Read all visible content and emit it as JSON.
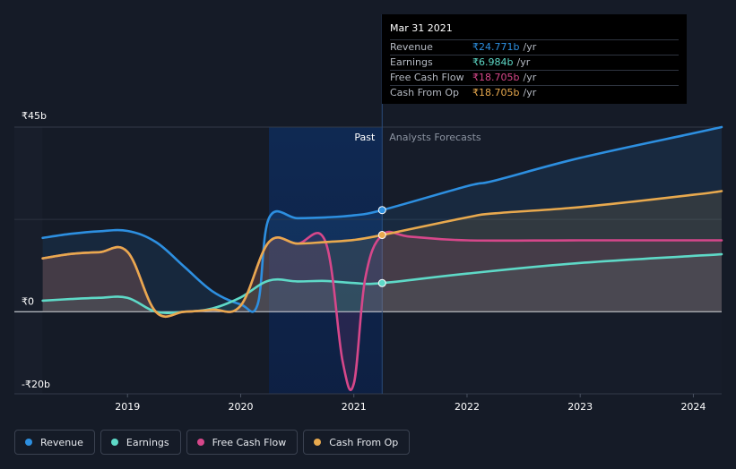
{
  "chart_data": {
    "type": "line",
    "y_axis": {
      "currency": "₹",
      "ylim": [
        -20,
        45
      ],
      "ticks": [
        {
          "value": 45,
          "label": "₹45b"
        },
        {
          "value": 0,
          "label": "₹0"
        },
        {
          "value": -20,
          "label": "-₹20b"
        }
      ]
    },
    "x_axis": {
      "xlim": [
        2018.0,
        2024.25
      ],
      "ticks": [
        {
          "value": 2019,
          "label": "2019"
        },
        {
          "value": 2020,
          "label": "2020"
        },
        {
          "value": 2021,
          "label": "2021"
        },
        {
          "value": 2022,
          "label": "2022"
        },
        {
          "value": 2023,
          "label": "2023"
        },
        {
          "value": 2024,
          "label": "2024"
        }
      ]
    },
    "zones": {
      "past_label": "Past",
      "forecast_label": "Analysts Forecasts",
      "highlight_start": 2020.25,
      "divider": 2021.25
    },
    "series": [
      {
        "key": "revenue",
        "name": "Revenue",
        "color": "#2d8fe0",
        "x": [
          2018.25,
          2018.5,
          2018.75,
          2019.0,
          2019.25,
          2019.5,
          2019.75,
          2020.0,
          2020.15,
          2020.25,
          2020.5,
          2020.75,
          2021.0,
          2021.25,
          2022.0,
          2022.25,
          2023.0,
          2024.0,
          2024.25
        ],
        "y": [
          18.0,
          19.0,
          19.6,
          19.7,
          17.0,
          11.0,
          5.0,
          1.8,
          1.8,
          22.8,
          22.8,
          23.0,
          23.5,
          24.771,
          30.6,
          32.0,
          37.5,
          43.5,
          45.0
        ]
      },
      {
        "key": "earnings",
        "name": "Earnings",
        "color": "#5ed9c7",
        "x": [
          2018.25,
          2018.5,
          2018.75,
          2019.0,
          2019.25,
          2019.5,
          2019.75,
          2020.0,
          2020.25,
          2020.5,
          2020.75,
          2021.0,
          2021.25,
          2022.0,
          2023.0,
          2024.25
        ],
        "y": [
          2.7,
          3.1,
          3.4,
          3.4,
          0.0,
          0.0,
          0.8,
          3.5,
          7.6,
          7.4,
          7.5,
          7.0,
          6.984,
          9.3,
          11.9,
          14.0
        ]
      },
      {
        "key": "free_cash_flow",
        "name": "Free Cash Flow",
        "color": "#d6478a",
        "x": [
          2018.25,
          2018.5,
          2018.75,
          2019.0,
          2019.25,
          2019.5,
          2019.75,
          2020.0,
          2020.25,
          2020.5,
          2020.75,
          2020.9,
          2021.0,
          2021.1,
          2021.25,
          2021.5,
          2022.0,
          2023.0,
          2024.25
        ],
        "y": [
          13.0,
          14.1,
          14.5,
          14.6,
          0.0,
          0.0,
          0.5,
          1.5,
          17.0,
          16.6,
          17.0,
          -12.0,
          -17.5,
          8.0,
          18.705,
          18.3,
          17.4,
          17.4,
          17.4
        ]
      },
      {
        "key": "cash_from_op",
        "name": "Cash From Op",
        "color": "#e8a94e",
        "x": [
          2018.25,
          2018.5,
          2018.75,
          2019.0,
          2019.25,
          2019.5,
          2019.75,
          2020.0,
          2020.25,
          2020.5,
          2020.75,
          2021.0,
          2021.25,
          2022.0,
          2022.25,
          2023.0,
          2024.0,
          2024.25
        ],
        "y": [
          13.0,
          14.1,
          14.5,
          14.6,
          0.0,
          0.0,
          0.5,
          1.5,
          17.0,
          16.6,
          17.0,
          17.5,
          18.705,
          23.0,
          24.0,
          25.5,
          28.5,
          29.4
        ]
      }
    ],
    "highlight_x": 2021.25
  },
  "tooltip": {
    "date": "Mar 31 2021",
    "rows": [
      {
        "label": "Revenue",
        "value": "₹24.771b",
        "unit": "/yr",
        "color": "#2d8fe0"
      },
      {
        "label": "Earnings",
        "value": "₹6.984b",
        "unit": "/yr",
        "color": "#5ed9c7"
      },
      {
        "label": "Free Cash Flow",
        "value": "₹18.705b",
        "unit": "/yr",
        "color": "#d6478a"
      },
      {
        "label": "Cash From Op",
        "value": "₹18.705b",
        "unit": "/yr",
        "color": "#e8a94e"
      }
    ]
  },
  "legend": [
    {
      "label": "Revenue",
      "color": "#2d8fe0"
    },
    {
      "label": "Earnings",
      "color": "#5ed9c7"
    },
    {
      "label": "Free Cash Flow",
      "color": "#d6478a"
    },
    {
      "label": "Cash From Op",
      "color": "#e8a94e"
    }
  ]
}
